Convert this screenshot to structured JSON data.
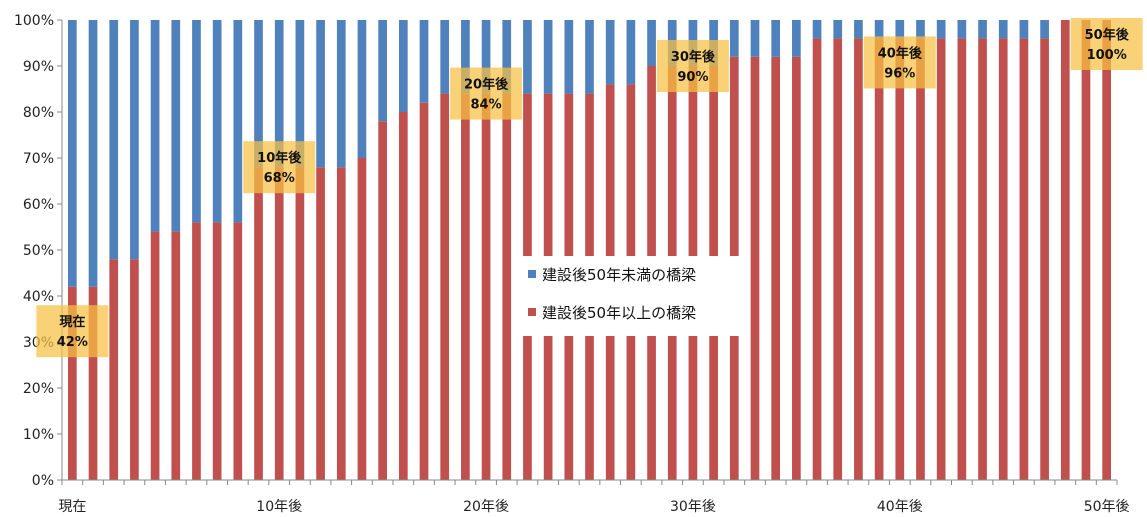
{
  "chart_data": {
    "type": "bar",
    "stacked": true,
    "ylim": [
      0,
      100
    ],
    "y_ticks": [
      "0%",
      "10%",
      "20%",
      "30%",
      "40%",
      "50%",
      "60%",
      "70%",
      "80%",
      "90%",
      "100%"
    ],
    "x_tick_labels": [
      {
        "index": 0,
        "label": "現在"
      },
      {
        "index": 10,
        "label": "10年後"
      },
      {
        "index": 20,
        "label": "20年後"
      },
      {
        "index": 30,
        "label": "30年後"
      },
      {
        "index": 40,
        "label": "40年後"
      },
      {
        "index": 50,
        "label": "50年後"
      }
    ],
    "series": [
      {
        "name": "建設後50年以上の橋梁",
        "color": "#c0504d",
        "values": [
          42,
          42,
          48,
          48,
          54,
          54,
          56,
          56,
          56,
          68,
          68,
          68,
          68,
          68,
          70,
          78,
          80,
          82,
          84,
          84,
          84,
          84,
          84,
          84,
          84,
          84,
          86,
          86,
          90,
          90,
          90,
          90,
          92,
          92,
          92,
          92,
          96,
          96,
          96,
          96,
          96,
          96,
          96,
          96,
          96,
          96,
          96,
          96,
          100,
          100,
          100
        ]
      },
      {
        "name": "建設後50年未満の橋梁",
        "color": "#4f81bd",
        "values": [
          58,
          58,
          52,
          52,
          46,
          46,
          44,
          44,
          44,
          32,
          32,
          32,
          32,
          32,
          30,
          22,
          20,
          18,
          16,
          16,
          16,
          16,
          16,
          16,
          16,
          16,
          14,
          14,
          10,
          10,
          10,
          10,
          8,
          8,
          8,
          8,
          4,
          4,
          4,
          4,
          4,
          4,
          4,
          4,
          4,
          4,
          4,
          4,
          0,
          0,
          0
        ]
      }
    ],
    "annotations": [
      {
        "index": 0,
        "line1": "現在",
        "line2": "42%"
      },
      {
        "index": 10,
        "line1": "10年後",
        "line2": "68%"
      },
      {
        "index": 20,
        "line1": "20年後",
        "line2": "84%"
      },
      {
        "index": 30,
        "line1": "30年後",
        "line2": "90%"
      },
      {
        "index": 40,
        "line1": "40年後",
        "line2": "96%"
      },
      {
        "index": 50,
        "line1": "50年後",
        "line2": "100%"
      }
    ],
    "legend_position": "center",
    "grid": false
  }
}
